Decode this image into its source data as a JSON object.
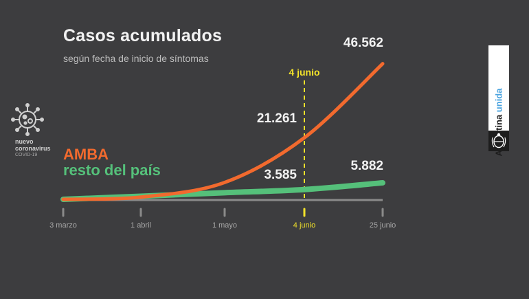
{
  "header": {
    "title": "Casos acumulados",
    "subtitle": "según fecha de inicio de síntomas"
  },
  "badge": {
    "line1": "nuevo",
    "line2": "coronavirus",
    "line3": "COVID-19",
    "icon": "virus-icon"
  },
  "brand": {
    "part1": "Argentina ",
    "part2": "unida",
    "icon": "national-seal-icon"
  },
  "colors": {
    "background": "#3d3d3f",
    "amba": "#f26a2e",
    "resto": "#55c07a",
    "marker": "#f2e22a",
    "axis": "#8a8a8a"
  },
  "chart_data": {
    "type": "line",
    "x_ticks": [
      "3 marzo",
      "1 abril",
      "1 mayo",
      "4 junio",
      "25 junio"
    ],
    "highlight_tick": "4 junio",
    "marker_label": "4 junio",
    "series": [
      {
        "name": "AMBA",
        "color": "#f26a2e",
        "points": [
          {
            "x": "3 marzo",
            "y": 0
          },
          {
            "x": "1 abril",
            "y": 1000
          },
          {
            "x": "1 mayo",
            "y": 6000
          },
          {
            "x": "4 junio",
            "y": 21261
          },
          {
            "x": "25 junio",
            "y": 46562
          }
        ],
        "labels": [
          {
            "x": "4 junio",
            "text": "21.261"
          },
          {
            "x": "25 junio",
            "text": "46.562"
          }
        ]
      },
      {
        "name": "resto del país",
        "color": "#55c07a",
        "points": [
          {
            "x": "3 marzo",
            "y": 0
          },
          {
            "x": "1 abril",
            "y": 1300
          },
          {
            "x": "1 mayo",
            "y": 2500
          },
          {
            "x": "4 junio",
            "y": 3585
          },
          {
            "x": "25 junio",
            "y": 5882
          }
        ],
        "labels": [
          {
            "x": "4 junio",
            "text": "3.585"
          },
          {
            "x": "25 junio",
            "text": "5.882"
          }
        ]
      }
    ],
    "ylim": [
      0,
      50000
    ]
  }
}
